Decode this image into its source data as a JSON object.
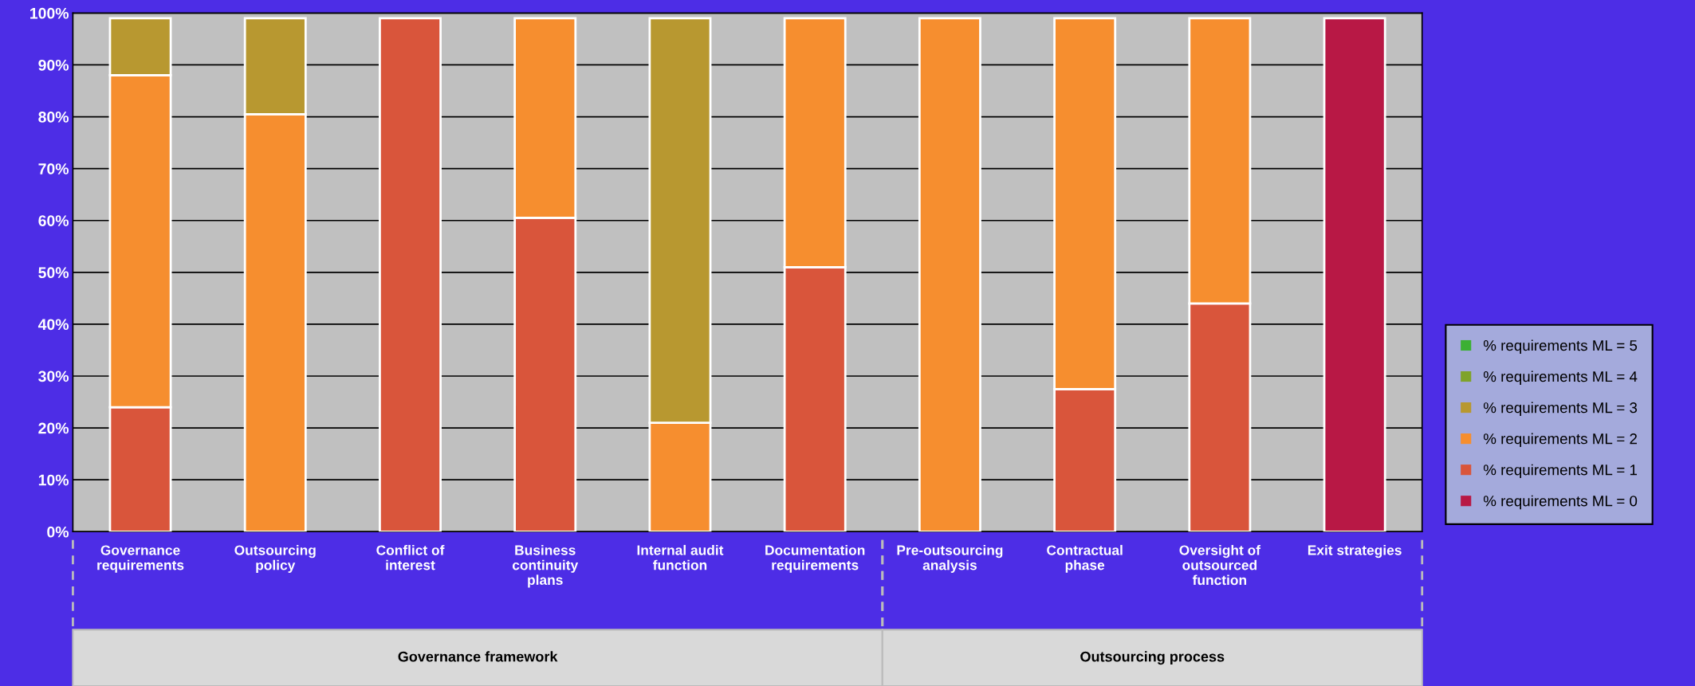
{
  "chart_data": {
    "type": "bar",
    "stacked": true,
    "categories": [
      "Governance requirements",
      "Outsourcing policy",
      "Conflict of interest",
      "Business continuity plans",
      "Internal audit function",
      "Documentation requirements",
      "Pre-outsourcing analysis",
      "Contractual phase",
      "Oversight of outsourced function",
      "Exit strategies"
    ],
    "series": [
      {
        "name": "% requirements ML = 0",
        "color": "#b81845",
        "values": [
          0,
          0,
          0,
          0,
          0,
          0,
          0,
          0,
          0,
          99
        ]
      },
      {
        "name": "% requirements ML = 1",
        "color": "#d9553b",
        "values": [
          24,
          0,
          99,
          60.5,
          0,
          51,
          0,
          27.5,
          44,
          0
        ]
      },
      {
        "name": "% requirements ML = 2",
        "color": "#f68e2f",
        "values": [
          64,
          80.5,
          0,
          38.5,
          21,
          48,
          99,
          71.5,
          55,
          0
        ]
      },
      {
        "name": "% requirements ML = 3",
        "color": "#b89830",
        "values": [
          11,
          18.5,
          0,
          0,
          78,
          0,
          0,
          0,
          0,
          0
        ]
      },
      {
        "name": "% requirements ML = 4",
        "color": "#7fa32a",
        "values": [
          0,
          0,
          0,
          0,
          0,
          0,
          0,
          0,
          0,
          0
        ]
      },
      {
        "name": "% requirements ML = 5",
        "color": "#3cb034",
        "values": [
          0,
          0,
          0,
          0,
          0,
          0,
          0,
          0,
          0,
          0
        ]
      }
    ],
    "ylim": [
      0,
      100
    ],
    "yticks": [
      {
        "value": 0,
        "label": "0%"
      },
      {
        "value": 10,
        "label": "10%"
      },
      {
        "value": 20,
        "label": "20%"
      },
      {
        "value": 30,
        "label": "30%"
      },
      {
        "value": 40,
        "label": "40%"
      },
      {
        "value": 50,
        "label": "50%"
      },
      {
        "value": 60,
        "label": "60%"
      },
      {
        "value": 70,
        "label": "70%"
      },
      {
        "value": 80,
        "label": "80%"
      },
      {
        "value": 90,
        "label": "90%"
      },
      {
        "value": 100,
        "label": "100%"
      }
    ],
    "grid": "y",
    "legend": "right",
    "annotations": [
      "Governance framework",
      "Outsourcing process"
    ]
  }
}
